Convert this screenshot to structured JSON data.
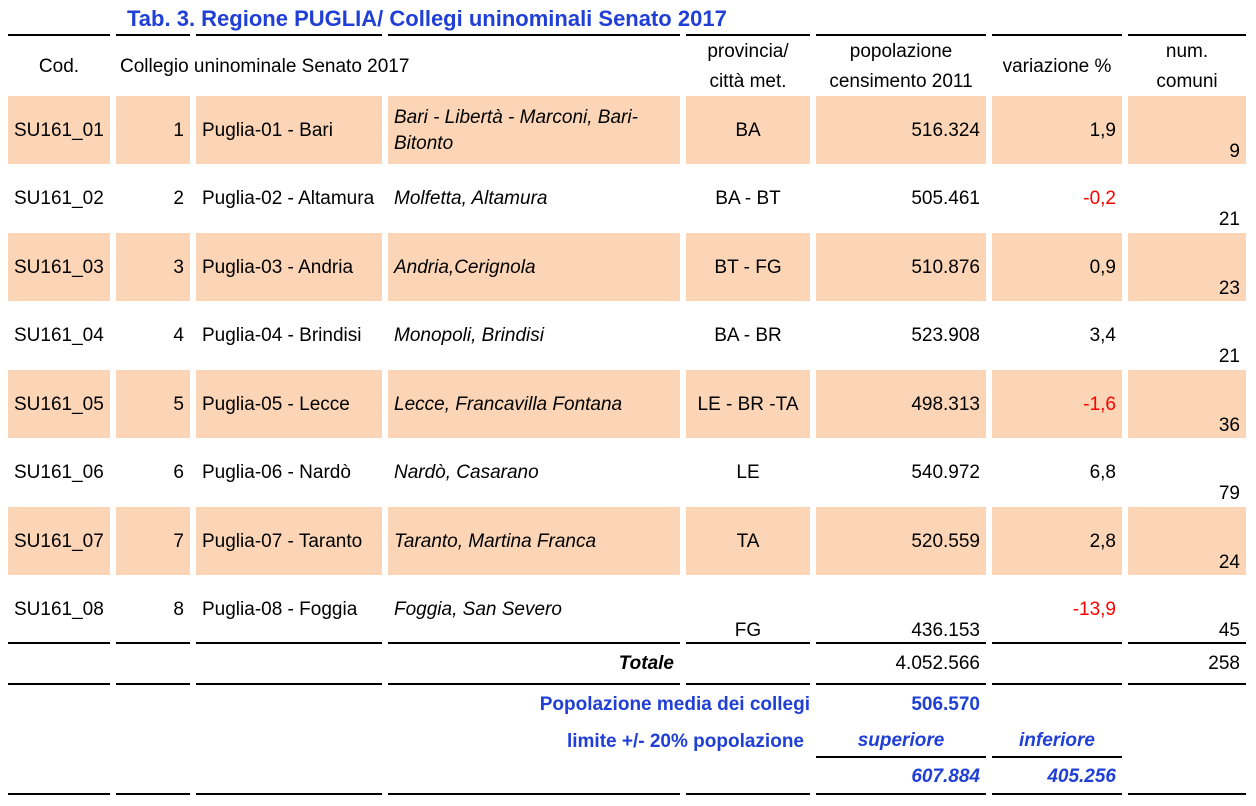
{
  "title": "Tab. 3.  Regione PUGLIA/ Collegi uninominali Senato 2017",
  "headers": {
    "cod": "Cod.",
    "collegio": "Collegio uninominale Senato 2017",
    "provincia": "provincia/\ncittà met.",
    "popolazione": "popolazione\ncensimento 2011",
    "variazione": "variazione %",
    "comuni": "num.\ncomuni"
  },
  "rows": [
    {
      "cod": "SU161_01",
      "num": "1",
      "name": "Puglia-01 - Bari",
      "desc": "Bari - Libertà - Marconi, Bari-Bitonto",
      "prov": "BA",
      "pop": "516.324",
      "var": "1,9",
      "neg": false,
      "comuni": "9"
    },
    {
      "cod": "SU161_02",
      "num": "2",
      "name": "Puglia-02 - Altamura",
      "desc": "Molfetta, Altamura",
      "prov": "BA - BT",
      "pop": "505.461",
      "var": "-0,2",
      "neg": true,
      "comuni": "21"
    },
    {
      "cod": "SU161_03",
      "num": "3",
      "name": "Puglia-03 - Andria",
      "desc": "Andria,Cerignola",
      "prov": "BT - FG",
      "pop": "510.876",
      "var": "0,9",
      "neg": false,
      "comuni": "23"
    },
    {
      "cod": "SU161_04",
      "num": "4",
      "name": "Puglia-04 - Brindisi",
      "desc": "Monopoli, Brindisi",
      "prov": "BA - BR",
      "pop": "523.908",
      "var": "3,4",
      "neg": false,
      "comuni": "21"
    },
    {
      "cod": "SU161_05",
      "num": "5",
      "name": "Puglia-05 - Lecce",
      "desc": "Lecce, Francavilla Fontana",
      "prov": "LE - BR -TA",
      "pop": "498.313",
      "var": "-1,6",
      "neg": true,
      "comuni": "36"
    },
    {
      "cod": "SU161_06",
      "num": "6",
      "name": "Puglia-06 - Nardò",
      "desc": "Nardò, Casarano",
      "prov": "LE",
      "pop": "540.972",
      "var": "6,8",
      "neg": false,
      "comuni": "79"
    },
    {
      "cod": "SU161_07",
      "num": "7",
      "name": "Puglia-07 - Taranto",
      "desc": "Taranto, Martina Franca",
      "prov": "TA",
      "pop": "520.559",
      "var": "2,8",
      "neg": false,
      "comuni": "24"
    },
    {
      "cod": "SU161_08",
      "num": "8",
      "name": "Puglia-08 - Foggia",
      "desc": "Foggia, San Severo",
      "prov": "FG",
      "pop": "436.153",
      "var": "-13,9",
      "neg": true,
      "comuni": "45"
    }
  ],
  "totals": {
    "label": "Totale",
    "pop": "4.052.566",
    "comuni": "258"
  },
  "summary": {
    "media_label": "Popolazione media dei collegi",
    "media_value": "506.570",
    "limite_label": "limite +/- 20% popolazione",
    "superiore_label": "superiore",
    "inferiore_label": "inferiore",
    "superiore_value": "607.884",
    "inferiore_value": "405.256"
  },
  "colors": {
    "highlight": "#fbd5b6",
    "title": "#1f3fd6",
    "negative": "#ff0000"
  }
}
